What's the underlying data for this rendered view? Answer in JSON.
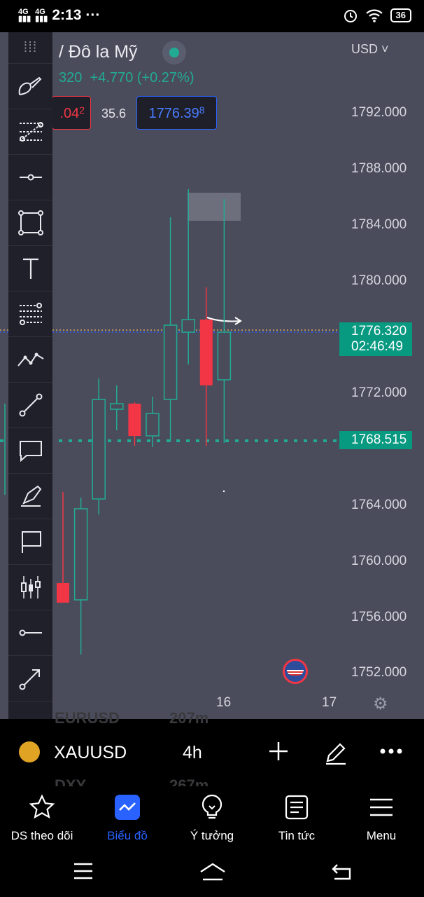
{
  "status": {
    "time": "2:13",
    "dots": "···",
    "net1": "4G",
    "net2": "4G",
    "battery": "36"
  },
  "header": {
    "title": "/ Đô la Mỹ",
    "change_prefix": "320",
    "change": "+4.770 (+0.27%)",
    "currency": "USD ˅"
  },
  "quote": {
    "bid_main": ".04",
    "bid_sup": "2",
    "spread": "35.6",
    "ask_main": "1776.39",
    "ask_sup": "8"
  },
  "price_axis": {
    "labels": [
      "1792.000",
      "1788.000",
      "1784.000",
      "1780.000",
      "1772.000",
      "1764.000",
      "1760.000",
      "1756.000",
      "1752.000"
    ]
  },
  "current_price": {
    "price": "1776.320",
    "countdown": "02:46:49"
  },
  "line_price": "1768.515",
  "time_axis": {
    "labels": [
      "16",
      "17"
    ]
  },
  "chart_data": {
    "type": "candlestick",
    "symbol": "XAUUSD",
    "timeframe": "4h",
    "currency": "USD",
    "ylim": [
      1750.5,
      1794.4
    ],
    "candles": [
      {
        "open": 1758.4,
        "high": 1764.9,
        "low": 1757.0,
        "close": 1757.0
      },
      {
        "open": 1757.2,
        "high": 1764.5,
        "low": 1753.3,
        "close": 1763.7
      },
      {
        "open": 1764.4,
        "high": 1773.0,
        "low": 1763.3,
        "close": 1771.5
      },
      {
        "open": 1770.8,
        "high": 1772.5,
        "low": 1769.3,
        "close": 1771.2
      },
      {
        "open": 1771.2,
        "high": 1771.3,
        "low": 1768.2,
        "close": 1768.9
      },
      {
        "open": 1768.9,
        "high": 1771.7,
        "low": 1768.1,
        "close": 1770.5
      },
      {
        "open": 1771.5,
        "high": 1784.5,
        "low": 1768.5,
        "close": 1776.8
      },
      {
        "open": 1776.3,
        "high": 1786.5,
        "low": 1774.0,
        "close": 1777.2
      },
      {
        "open": 1777.2,
        "high": 1779.5,
        "low": 1768.2,
        "close": 1772.5
      },
      {
        "open": 1772.9,
        "high": 1785.8,
        "low": 1768.4,
        "close": 1776.3
      }
    ],
    "current_price": 1776.32,
    "horizontal_line": 1768.515,
    "x_ticks": [
      {
        "label": "16",
        "index": 9.5
      },
      {
        "label": "17",
        "index": 16
      }
    ]
  },
  "toolbar": {
    "tools": [
      "brush-icon",
      "pitchfork-icon",
      "horizontal-ray-icon",
      "rectangle-icon",
      "text-icon",
      "fib-icon",
      "pattern-icon",
      "trendline-icon",
      "callout-icon",
      "highlighter-icon",
      "flag-note-icon",
      "long-short-icon",
      "horizontal-line-icon",
      "arrow-icon"
    ]
  },
  "bottombar": {
    "symbol": "XAUUSD",
    "timeframe": "4h",
    "ghost1": "EURUSD",
    "ghost2": "207m",
    "ghost3": "DXY",
    "ghost4": "267m"
  },
  "tabs": [
    {
      "label": "DS theo dõi",
      "icon": "star-icon"
    },
    {
      "label": "Biểu đồ",
      "icon": "chart-icon"
    },
    {
      "label": "Ý tưởng",
      "icon": "bulb-icon"
    },
    {
      "label": "Tin tức",
      "icon": "news-icon"
    },
    {
      "label": "Menu",
      "icon": "menu-icon"
    }
  ],
  "colors": {
    "up": "#22ab94",
    "down": "#f23645",
    "accent": "#2962ff",
    "bg": "#4a4c5b"
  }
}
